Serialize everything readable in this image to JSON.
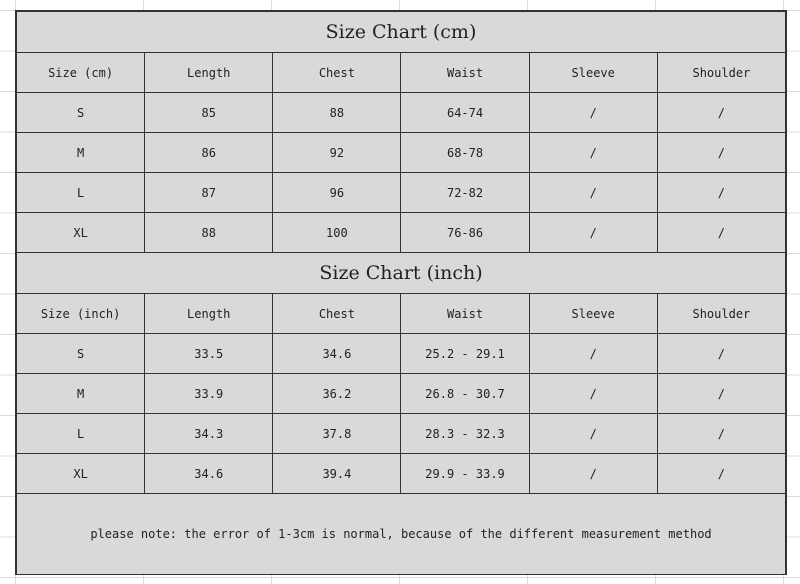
{
  "tables": [
    {
      "title": "Size Chart (cm)",
      "headers": [
        "Size (cm)",
        "Length",
        "Chest",
        "Waist",
        "Sleeve",
        "Shoulder"
      ],
      "rows": [
        [
          "S",
          "85",
          "88",
          "64-74",
          "/",
          "/"
        ],
        [
          "M",
          "86",
          "92",
          "68-78",
          "/",
          "/"
        ],
        [
          "L",
          "87",
          "96",
          "72-82",
          "/",
          "/"
        ],
        [
          "XL",
          "88",
          "100",
          "76-86",
          "/",
          "/"
        ]
      ]
    },
    {
      "title": "Size Chart (inch)",
      "headers": [
        "Size (inch)",
        "Length",
        "Chest",
        "Waist",
        "Sleeve",
        "Shoulder"
      ],
      "rows": [
        [
          "S",
          "33.5",
          "34.6",
          "25.2 - 29.1",
          "/",
          "/"
        ],
        [
          "M",
          "33.9",
          "36.2",
          "26.8 - 30.7",
          "/",
          "/"
        ],
        [
          "L",
          "34.3",
          "37.8",
          "28.3 - 32.3",
          "/",
          "/"
        ],
        [
          "XL",
          "34.6",
          "39.4",
          "29.9 - 33.9",
          "/",
          "/"
        ]
      ]
    }
  ],
  "note": "please note: the error of 1-3cm is normal, because of the different measurement method",
  "colors": {
    "cell_fill": "#d9d9d9",
    "border": "#333333",
    "gridline": "#dcdcdc"
  }
}
